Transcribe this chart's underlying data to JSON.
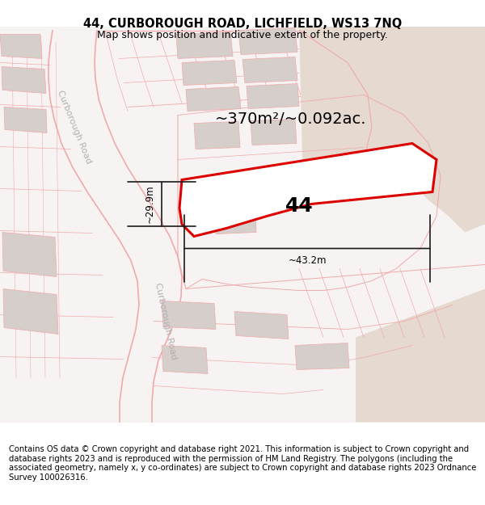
{
  "title_line1": "44, CURBOROUGH ROAD, LICHFIELD, WS13 7NQ",
  "title_line2": "Map shows position and indicative extent of the property.",
  "footer_text": "Contains OS data © Crown copyright and database right 2021. This information is subject to Crown copyright and database rights 2023 and is reproduced with the permission of HM Land Registry. The polygons (including the associated geometry, namely x, y co-ordinates) are subject to Crown copyright and database rights 2023 Ordnance Survey 100026316.",
  "area_label": "~370m²/~0.092ac.",
  "number_label": "44",
  "dim_h": "~29.9m",
  "dim_w": "~43.2m",
  "road_label_upper": "Curborough Road",
  "road_label_lower": "Curborough Road",
  "bg_map_color": "#f7f3f3",
  "bg_tan_color": "#e5d9d0",
  "plot_edge_color": "#dd0000",
  "building_fill": "#d6ceca",
  "road_line_color": "#f0aaaa",
  "dim_line_color": "#1a1a1a",
  "title_fontsize": 10.5,
  "subtitle_fontsize": 9,
  "footer_fontsize": 7.2,
  "area_fontsize": 14,
  "number_fontsize": 18,
  "road_label_fontsize": 8,
  "dim_fontsize": 8.5
}
